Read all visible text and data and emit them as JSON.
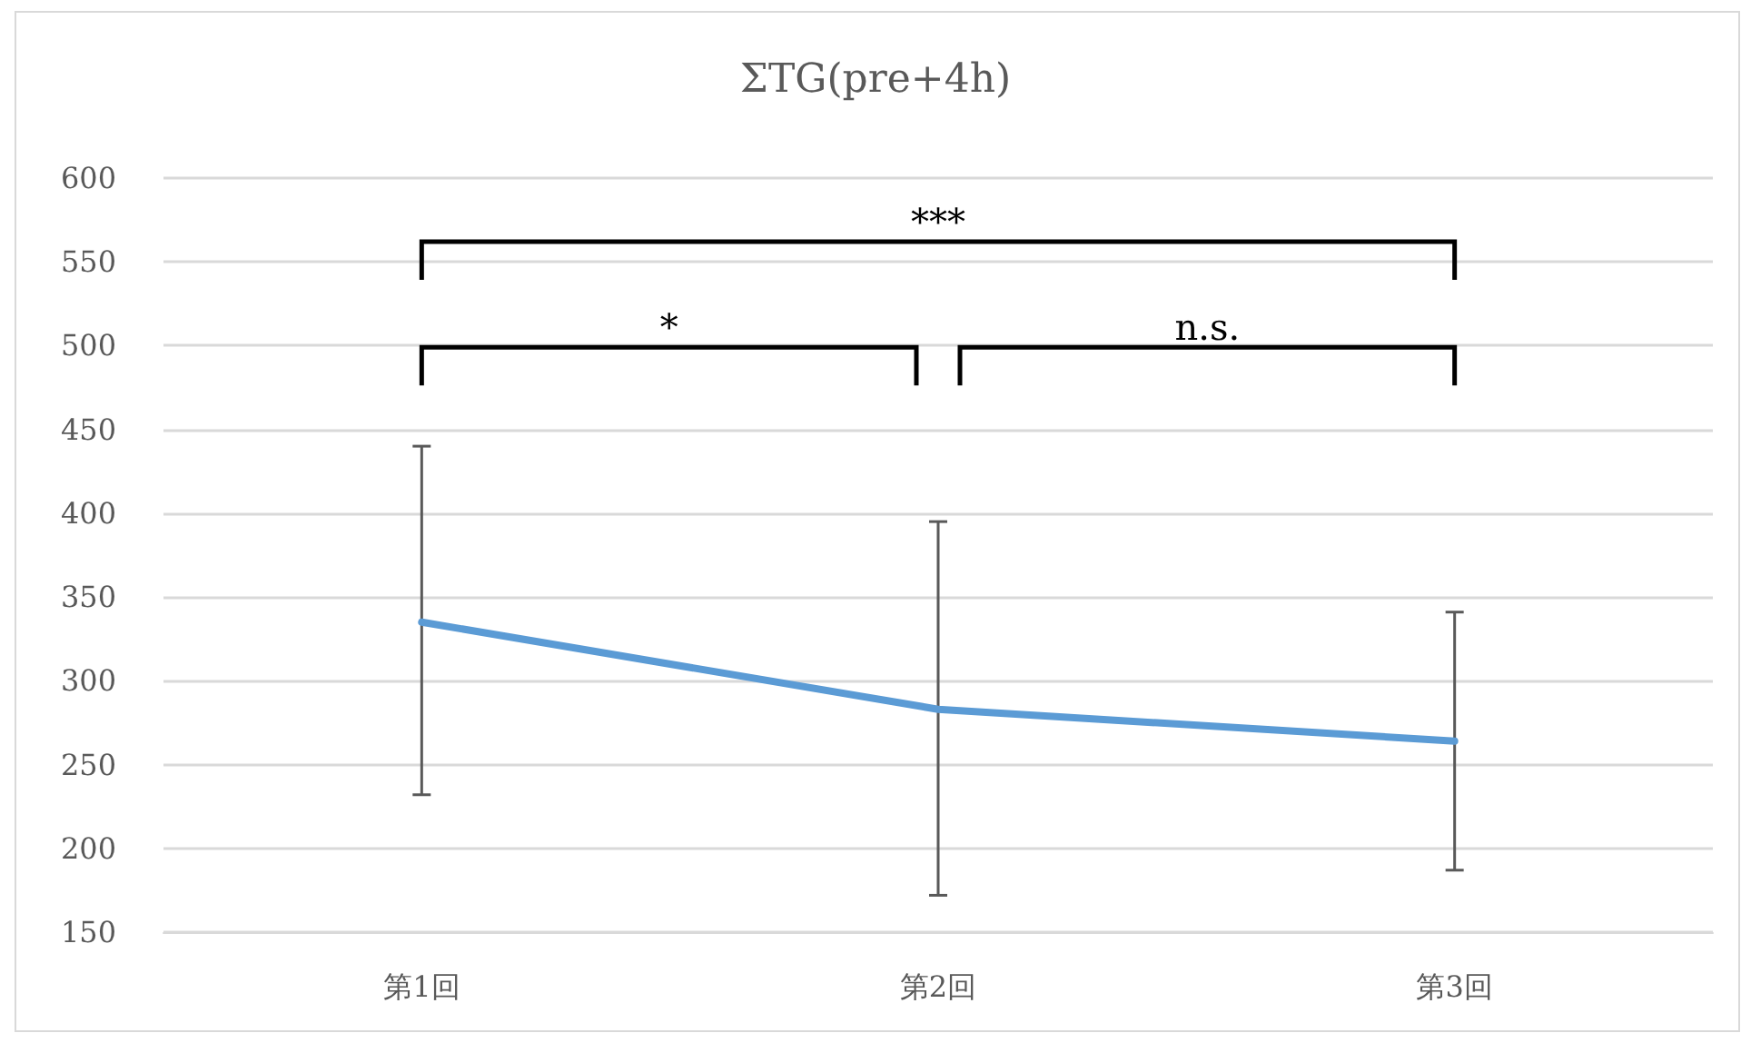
{
  "chart_data": {
    "type": "line",
    "title": "ΣTG(pre+4h)",
    "categories": [
      "第1回",
      "第2回",
      "第3回"
    ],
    "series": [
      {
        "color": "#5b9bd5",
        "values": [
          335,
          283,
          264
        ],
        "errors": [
          [
            232,
            440
          ],
          [
            172,
            395
          ],
          [
            187,
            341
          ]
        ]
      }
    ],
    "ylim": [
      150,
      600
    ],
    "yticks": [
      150,
      200,
      250,
      300,
      350,
      400,
      450,
      500,
      550,
      600
    ],
    "grid": "y",
    "marker": "none",
    "line_style": "solid",
    "annotations": [
      "***",
      "*",
      "n.s."
    ]
  }
}
